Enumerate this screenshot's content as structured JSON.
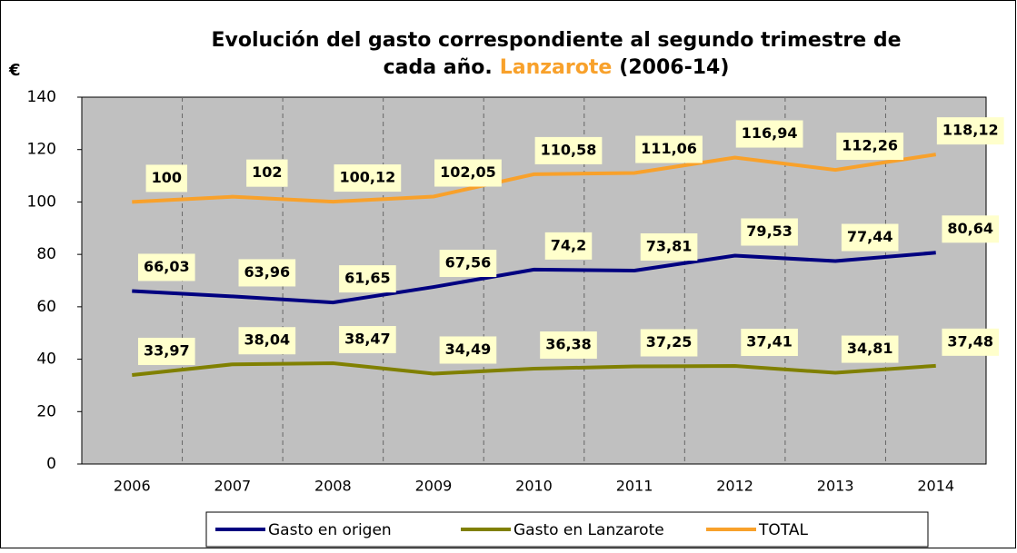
{
  "chart_data": {
    "type": "line",
    "title": [
      "Evolución del gasto correspondiente al segundo trimestre de",
      "cada año.",
      "Lanzarote",
      "(2006-14)"
    ],
    "y_label": "€",
    "categories": [
      "2006",
      "2007",
      "2008",
      "2009",
      "2010",
      "2011",
      "2012",
      "2013",
      "2014"
    ],
    "series": [
      {
        "name": "Gasto en origen",
        "color": "#000080",
        "values": [
          66.03,
          63.96,
          61.65,
          67.56,
          74.2,
          73.81,
          79.53,
          77.44,
          80.64
        ],
        "value_labels": [
          "66,03",
          "63,96",
          "61,65",
          "67,56",
          "74,2",
          "73,81",
          "79,53",
          "77,44",
          "80,64"
        ]
      },
      {
        "name": "Gasto en Lanzarote",
        "color": "#808000",
        "values": [
          33.97,
          38.04,
          38.47,
          34.49,
          36.38,
          37.25,
          37.41,
          34.81,
          37.48
        ],
        "value_labels": [
          "33,97",
          "38,04",
          "38,47",
          "34,49",
          "36,38",
          "37,25",
          "37,41",
          "34,81",
          "37,48"
        ]
      },
      {
        "name": "TOTAL",
        "color": "#f8a12b",
        "values": [
          100,
          102,
          100.12,
          102.05,
          110.58,
          111.06,
          116.94,
          112.26,
          118.12
        ],
        "value_labels": [
          "100",
          "102",
          "100,12",
          "102,05",
          "110,58",
          "111,06",
          "116,94",
          "112,26",
          "118,12"
        ]
      }
    ],
    "ylim": [
      0,
      140
    ],
    "yticks": [
      0,
      20,
      40,
      60,
      80,
      100,
      120,
      140
    ],
    "legend": "bottom"
  }
}
